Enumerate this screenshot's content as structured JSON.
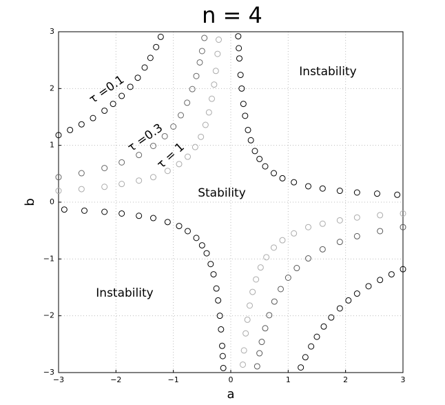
{
  "chart_data": {
    "type": "scatter",
    "title": "n = 4",
    "x_label": "a",
    "y_label": "b",
    "xlim": [
      -3,
      3
    ],
    "ylim": [
      -3,
      3
    ],
    "grid": true,
    "xticks": [
      {
        "value": -3,
        "label": "−3"
      },
      {
        "value": -2,
        "label": "−2"
      },
      {
        "value": -1,
        "label": "−1"
      },
      0,
      1,
      2,
      3
    ],
    "yticks": [
      {
        "value": -3,
        "label": "−3"
      },
      {
        "value": -2,
        "label": "−2"
      },
      {
        "value": -1,
        "label": "−1"
      },
      0,
      1,
      2,
      3
    ],
    "annotations": [
      "Instability",
      "Instability",
      "Stability",
      "τ =0.1",
      "τ =0.3",
      "τ = 1"
    ],
    "series": [
      {
        "color": "#000000",
        "x": [
          0.13,
          0.14,
          0.15,
          0.17,
          0.19,
          0.22,
          0.25,
          0.3,
          0.35,
          0.42,
          0.5,
          0.6,
          0.75,
          0.9,
          1.1,
          1.35,
          1.6,
          1.9,
          2.2,
          2.55,
          2.9
        ],
        "y": [
          2.92,
          2.71,
          2.53,
          2.24,
          2.0,
          1.73,
          1.52,
          1.27,
          1.09,
          0.9,
          0.76,
          0.63,
          0.51,
          0.42,
          0.35,
          0.28,
          0.24,
          0.2,
          0.17,
          0.15,
          0.13
        ]
      },
      {
        "color": "#000000",
        "x": [
          -0.13,
          -0.14,
          -0.15,
          -0.17,
          -0.19,
          -0.22,
          -0.25,
          -0.3,
          -0.35,
          -0.42,
          -0.5,
          -0.6,
          -0.75,
          -0.9,
          -1.1,
          -1.35,
          -1.6,
          -1.9,
          -2.2,
          -2.55,
          -2.9
        ],
        "y": [
          -2.92,
          -2.71,
          -2.53,
          -2.24,
          -2.0,
          -1.73,
          -1.52,
          -1.27,
          -1.09,
          -0.9,
          -0.76,
          -0.63,
          -0.51,
          -0.42,
          -0.35,
          -0.28,
          -0.24,
          -0.2,
          -0.17,
          -0.15,
          -0.13
        ]
      },
      {
        "color": "#000000",
        "x": [
          -3,
          -2.8,
          -2.6,
          -2.4,
          -2.2,
          -2.05,
          -1.9,
          -1.75,
          -1.62,
          -1.5,
          -1.4,
          -1.3,
          -1.22
        ],
        "y": [
          1.18,
          1.27,
          1.37,
          1.48,
          1.61,
          1.73,
          1.87,
          2.03,
          2.19,
          2.37,
          2.54,
          2.73,
          2.91
        ]
      },
      {
        "color": "#000000",
        "x": [
          3,
          2.8,
          2.6,
          2.4,
          2.2,
          2.05,
          1.9,
          1.75,
          1.62,
          1.5,
          1.4,
          1.3,
          1.22
        ],
        "y": [
          -1.18,
          -1.27,
          -1.37,
          -1.48,
          -1.61,
          -1.73,
          -1.87,
          -2.03,
          -2.19,
          -2.37,
          -2.54,
          -2.73,
          -2.91
        ]
      },
      {
        "color": "#666666",
        "x": [
          -3,
          -2.6,
          -2.2,
          -1.9,
          -1.6,
          -1.35,
          -1.15,
          -1.0,
          -0.87,
          -0.76,
          -0.67,
          -0.6,
          -0.54,
          -0.5,
          -0.46
        ],
        "y": [
          0.44,
          0.51,
          0.6,
          0.7,
          0.83,
          0.99,
          1.16,
          1.33,
          1.53,
          1.75,
          1.99,
          2.22,
          2.46,
          2.66,
          2.89
        ]
      },
      {
        "color": "#555555",
        "x": [
          3,
          2.6,
          2.2,
          1.9,
          1.6,
          1.35,
          1.15,
          1.0,
          0.87,
          0.76,
          0.67,
          0.6,
          0.54,
          0.5,
          0.46
        ],
        "y": [
          -0.44,
          -0.51,
          -0.6,
          -0.7,
          -0.83,
          -0.99,
          -1.16,
          -1.33,
          -1.53,
          -1.75,
          -1.99,
          -2.22,
          -2.46,
          -2.66,
          -2.89
        ]
      },
      {
        "color": "#aaaaaa",
        "x": [
          -3,
          -2.6,
          -2.2,
          -1.9,
          -1.6,
          -1.35,
          -1.1,
          -0.9,
          -0.75,
          -0.62,
          -0.52,
          -0.44,
          -0.38,
          -0.33,
          -0.29,
          -0.26,
          -0.23,
          -0.21
        ],
        "y": [
          0.2,
          0.23,
          0.27,
          0.32,
          0.38,
          0.44,
          0.55,
          0.67,
          0.8,
          0.97,
          1.15,
          1.36,
          1.58,
          1.82,
          2.07,
          2.31,
          2.61,
          2.86
        ]
      },
      {
        "color": "#aaaaaa",
        "x": [
          3,
          2.6,
          2.2,
          1.9,
          1.6,
          1.35,
          1.1,
          0.9,
          0.75,
          0.62,
          0.52,
          0.44,
          0.38,
          0.33,
          0.29,
          0.26,
          0.23,
          0.21
        ],
        "y": [
          -0.2,
          -0.23,
          -0.27,
          -0.32,
          -0.38,
          -0.44,
          -0.55,
          -0.67,
          -0.8,
          -0.97,
          -1.15,
          -1.36,
          -1.58,
          -1.82,
          -2.07,
          -2.31,
          -2.61,
          -2.86
        ]
      }
    ]
  }
}
